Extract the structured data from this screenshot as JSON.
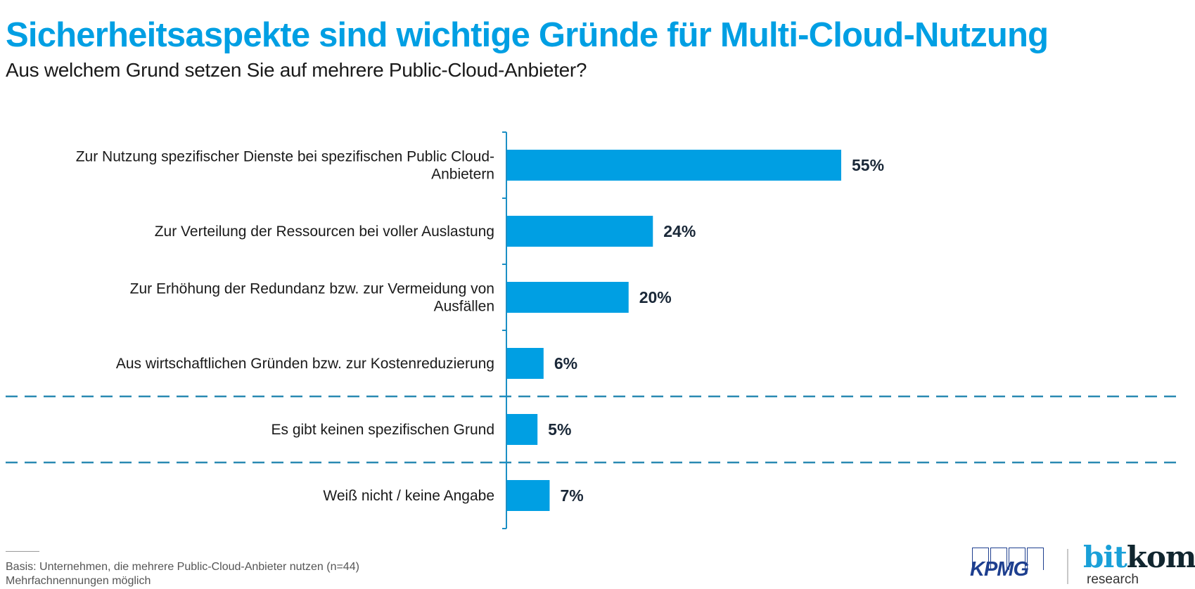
{
  "header": {
    "title": "Sicherheitsaspekte sind wichtige Gründe für Multi-Cloud-Nutzung",
    "subtitle": "Aus welchem Grund setzen Sie auf mehrere Public-Cloud-Anbieter?"
  },
  "chart_data": {
    "type": "bar",
    "orientation": "horizontal",
    "title": "Sicherheitsaspekte sind wichtige Gründe für Multi-Cloud-Nutzung",
    "subtitle": "Aus welchem Grund setzen Sie auf mehrere Public-Cloud-Anbieter?",
    "categories": [
      [
        "Zur Nutzung spezifischer Dienste bei spezifischen Public Cloud-",
        "Anbietern"
      ],
      [
        "Zur Verteilung der Ressourcen bei voller Auslastung"
      ],
      [
        "Zur Erhöhung der Redundanz bzw. zur Vermeidung von",
        "Ausfällen"
      ],
      [
        "Aus wirtschaftlichen Gründen bzw. zur Kostenreduzierung"
      ],
      [
        "Es gibt keinen spezifischen Grund"
      ],
      [
        "Weiß nicht / keine Angabe"
      ]
    ],
    "values": [
      55,
      24,
      20,
      6,
      5,
      7
    ],
    "value_labels": [
      "55%",
      "24%",
      "20%",
      "6%",
      "5%",
      "7%"
    ],
    "unit": "%",
    "xlim": [
      0,
      100
    ],
    "xlabel": "",
    "ylabel": "",
    "grid": false,
    "legend": "none",
    "group_separators_after_index": [
      3,
      4
    ],
    "bar_color": "#009fe3",
    "axis_color": "#1c8fc4",
    "separator_color": "#2a8ab2"
  },
  "footnote": {
    "lines": [
      "Basis: Unternehmen, die mehrere Public-Cloud-Anbieter nutzen (n=44)",
      "Mehrfachnennungen möglich"
    ]
  },
  "logos": {
    "kpmg": "KPMG",
    "bitkom_bit": "bit",
    "bitkom_kom": "kom",
    "bitkom_sub": "research"
  },
  "colors": {
    "title": "#009fe3",
    "bar": "#009fe3",
    "value_text": "#1a2838"
  }
}
